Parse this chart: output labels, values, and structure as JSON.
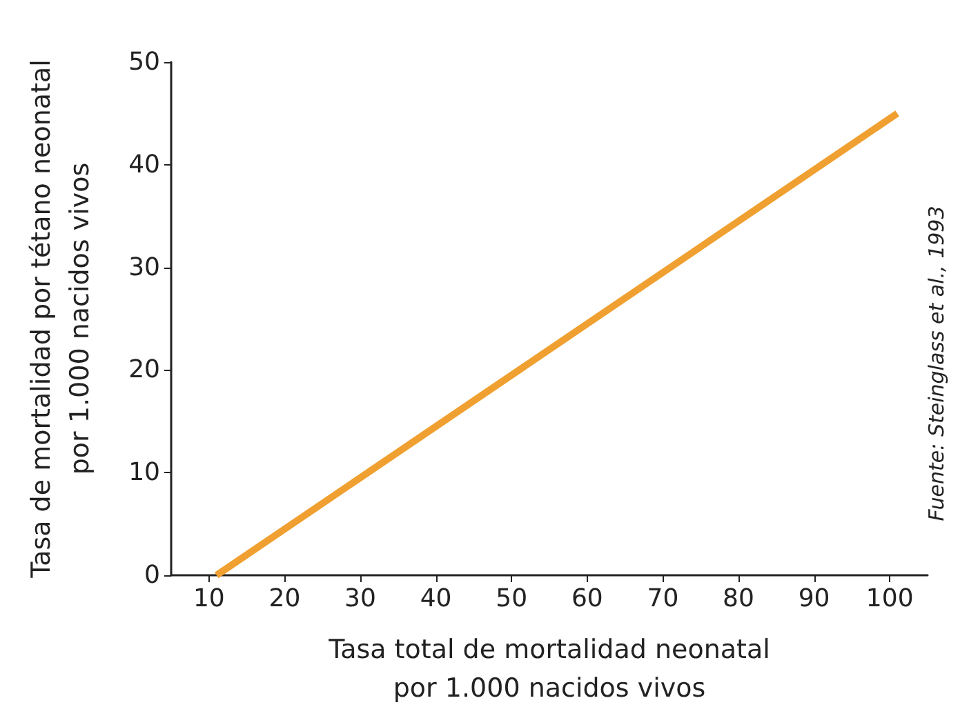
{
  "chart_data": {
    "type": "line",
    "xlabel": "Tasa total de mortalidad neonatal\npor 1.000 nacidos vivos",
    "ylabel": "Tasa de mortalidad por tétano neonatal\npor 1.000 nacidos vivos",
    "annotations": [
      "Fuente: Steinglass et al., 1993"
    ],
    "series": [
      {
        "color": "#f0a030",
        "x": [
          11,
          101
        ],
        "values": [
          0,
          45
        ]
      }
    ],
    "xlim": [
      5,
      105
    ],
    "xticks": [
      10,
      20,
      30,
      40,
      50,
      60,
      70,
      80,
      90,
      100
    ],
    "ylim": [
      0,
      50
    ],
    "yticks": [
      0,
      10,
      20,
      30,
      40,
      50
    ],
    "grid": false,
    "marker": "none",
    "line_style": "solid"
  }
}
